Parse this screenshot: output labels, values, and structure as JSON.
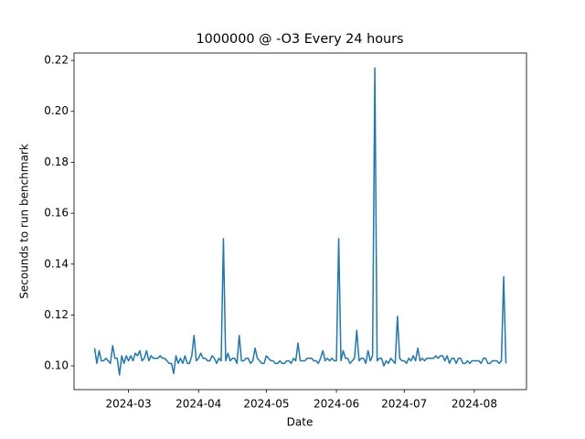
{
  "chart_data": {
    "type": "line",
    "title": "1000000 @ -O3 Every 24 hours",
    "x_label": "Date",
    "y_label": "Secounds to run benchmark",
    "x": [
      19768,
      19769,
      19770,
      19771,
      19772,
      19773,
      19774,
      19775,
      19776,
      19777,
      19778,
      19779,
      19780,
      19781,
      19782,
      19783,
      19784,
      19785,
      19786,
      19787,
      19788,
      19789,
      19790,
      19791,
      19792,
      19793,
      19794,
      19795,
      19796,
      19797,
      19798,
      19799,
      19800,
      19801,
      19802,
      19803,
      19804,
      19805,
      19806,
      19807,
      19808,
      19809,
      19810,
      19811,
      19812,
      19813,
      19814,
      19815,
      19816,
      19817,
      19818,
      19819,
      19820,
      19821,
      19822,
      19823,
      19824,
      19825,
      19826,
      19827,
      19828,
      19829,
      19830,
      19831,
      19832,
      19833,
      19834,
      19835,
      19836,
      19837,
      19838,
      19839,
      19840,
      19841,
      19842,
      19843,
      19844,
      19845,
      19846,
      19847,
      19848,
      19849,
      19850,
      19851,
      19852,
      19853,
      19854,
      19855,
      19856,
      19857,
      19858,
      19859,
      19860,
      19861,
      19862,
      19863,
      19864,
      19865,
      19866,
      19867,
      19868,
      19869,
      19870,
      19871,
      19872,
      19873,
      19874,
      19875,
      19876,
      19877,
      19878,
      19879,
      19880,
      19881,
      19882,
      19883,
      19884,
      19885,
      19886,
      19887,
      19888,
      19889,
      19890,
      19891,
      19892,
      19893,
      19894,
      19895,
      19896,
      19897,
      19898,
      19899,
      19900,
      19901,
      19902,
      19903,
      19904,
      19905,
      19906,
      19907,
      19908,
      19909,
      19910,
      19911,
      19912,
      19913,
      19914,
      19915,
      19916,
      19917,
      19918,
      19919,
      19920,
      19921,
      19922,
      19923,
      19924,
      19925,
      19926,
      19927,
      19928,
      19929,
      19930,
      19931,
      19932,
      19933,
      19934,
      19935,
      19936,
      19937,
      19938,
      19939,
      19940,
      19941,
      19942,
      19943,
      19944,
      19945,
      19946,
      19947,
      19948,
      19949,
      19950
    ],
    "series": [
      {
        "color": "#1f77b4",
        "values": [
          0.107,
          0.101,
          0.106,
          0.102,
          0.102,
          0.103,
          0.102,
          0.101,
          0.108,
          0.103,
          0.103,
          0.0965,
          0.104,
          0.101,
          0.104,
          0.102,
          0.104,
          0.102,
          0.105,
          0.104,
          0.106,
          0.102,
          0.103,
          0.106,
          0.102,
          0.104,
          0.103,
          0.103,
          0.103,
          0.104,
          0.103,
          0.103,
          0.102,
          0.101,
          0.101,
          0.097,
          0.104,
          0.101,
          0.103,
          0.101,
          0.104,
          0.101,
          0.101,
          0.104,
          0.112,
          0.102,
          0.103,
          0.105,
          0.103,
          0.103,
          0.102,
          0.102,
          0.104,
          0.103,
          0.101,
          0.103,
          0.102,
          0.15,
          0.102,
          0.105,
          0.102,
          0.103,
          0.103,
          0.101,
          0.112,
          0.102,
          0.102,
          0.103,
          0.103,
          0.101,
          0.102,
          0.107,
          0.103,
          0.102,
          0.101,
          0.101,
          0.104,
          0.103,
          0.102,
          0.102,
          0.101,
          0.101,
          0.102,
          0.101,
          0.101,
          0.102,
          0.102,
          0.101,
          0.103,
          0.102,
          0.109,
          0.102,
          0.102,
          0.102,
          0.103,
          0.103,
          0.103,
          0.102,
          0.102,
          0.101,
          0.103,
          0.106,
          0.102,
          0.103,
          0.102,
          0.103,
          0.102,
          0.102,
          0.15,
          0.102,
          0.106,
          0.103,
          0.103,
          0.101,
          0.102,
          0.103,
          0.114,
          0.102,
          0.103,
          0.103,
          0.101,
          0.106,
          0.102,
          0.104,
          0.217,
          0.102,
          0.103,
          0.103,
          0.1,
          0.102,
          0.101,
          0.103,
          0.102,
          0.101,
          0.1195,
          0.103,
          0.102,
          0.102,
          0.101,
          0.103,
          0.102,
          0.104,
          0.102,
          0.107,
          0.102,
          0.103,
          0.102,
          0.103,
          0.103,
          0.103,
          0.103,
          0.104,
          0.103,
          0.104,
          0.104,
          0.102,
          0.104,
          0.101,
          0.103,
          0.103,
          0.101,
          0.103,
          0.103,
          0.101,
          0.101,
          0.102,
          0.101,
          0.102,
          0.102,
          0.102,
          0.102,
          0.101,
          0.103,
          0.103,
          0.101,
          0.101,
          0.102,
          0.102,
          0.102,
          0.101,
          0.102,
          0.135,
          0.101
        ]
      }
    ],
    "xlim": [
      19758.9,
      19959.1
    ],
    "xticks": [
      {
        "value": 19783,
        "label": "2024-03"
      },
      {
        "value": 19814,
        "label": "2024-04"
      },
      {
        "value": 19844,
        "label": "2024-05"
      },
      {
        "value": 19875,
        "label": "2024-06"
      },
      {
        "value": 19905,
        "label": "2024-07"
      },
      {
        "value": 19936,
        "label": "2024-08"
      }
    ],
    "ylim": [
      0.0907,
      0.2229
    ],
    "yticks": [
      {
        "value": 0.1,
        "label": "0.10"
      },
      0.12,
      0.14,
      0.16,
      0.18,
      {
        "value": 0.2,
        "label": "0.20"
      },
      0.22
    ]
  }
}
